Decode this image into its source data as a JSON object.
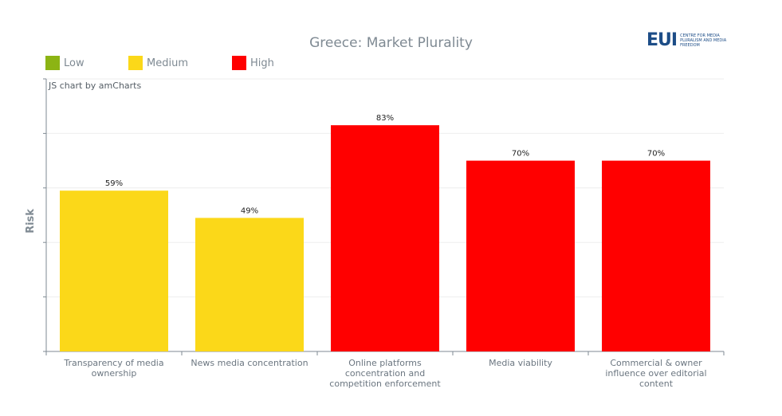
{
  "logo": {
    "mark": "EUI",
    "text": "CENTRE FOR MEDIA PLURALISM AND MEDIA FREEDOM"
  },
  "credit": "JS chart by amCharts",
  "legend": [
    {
      "label": "Low",
      "color": "#8cb414"
    },
    {
      "label": "Medium",
      "color": "#fbd819"
    },
    {
      "label": "High",
      "color": "#ff0000"
    }
  ],
  "chart_data": {
    "type": "bar",
    "title": "Greece: Market Plurality",
    "ylabel": "Risk",
    "xlabel": "",
    "ylim": [
      0,
      100
    ],
    "categories": [
      "Transparency of media ownership",
      "News media concentration",
      "Online platforms concentration and competition enforcement",
      "Media viability",
      "Commercial & owner influence over editorial content"
    ],
    "values": [
      59,
      49,
      83,
      70,
      70
    ],
    "value_labels": [
      "59%",
      "49%",
      "83%",
      "70%",
      "70%"
    ],
    "risk_levels": [
      "Medium",
      "Medium",
      "High",
      "High",
      "High"
    ],
    "grid": true,
    "legend_position": "top-left"
  }
}
